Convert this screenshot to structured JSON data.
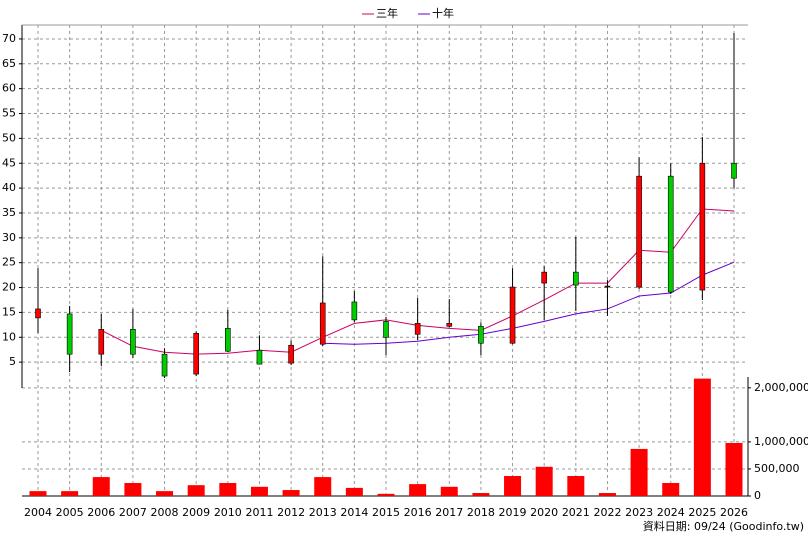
{
  "chart_data": {
    "type": "candlestick",
    "categories": [
      "2004",
      "2005",
      "2006",
      "2007",
      "2008",
      "2009",
      "2010",
      "2011",
      "2012",
      "2013",
      "2014",
      "2015",
      "2016",
      "2017",
      "2018",
      "2019",
      "2020",
      "2021",
      "2022",
      "2023",
      "2024",
      "2025",
      "2026"
    ],
    "open": [
      13.9,
      14.7,
      6.6,
      11.6,
      6.6,
      2.6,
      11.8,
      7.4,
      4.8,
      8.6,
      17.1,
      13.2,
      10.6,
      12.2,
      12.2,
      8.8,
      20.9,
      23.1,
      20.1,
      20.1,
      42.4,
      19.5,
      45
    ],
    "close": [
      15.7,
      6.6,
      11.6,
      6.6,
      2.2,
      10.8,
      7.2,
      4.6,
      8.4,
      16.9,
      13.5,
      10,
      12.8,
      12.8,
      8.8,
      20.1,
      23.1,
      20.5,
      20.3,
      42.4,
      19.1,
      45,
      42
    ],
    "high": [
      23.9,
      16.3,
      14.7,
      15.7,
      7.8,
      11.2,
      15.5,
      10.4,
      9.4,
      26.3,
      19.3,
      14.1,
      17.9,
      17.7,
      13,
      23.9,
      24.3,
      30.2,
      21.5,
      46.2,
      45,
      50.3,
      71.2
    ],
    "low": [
      10.8,
      3,
      4.2,
      5.8,
      1.8,
      2.2,
      7,
      4.6,
      4.4,
      8.2,
      13,
      6.4,
      9.4,
      12,
      6.4,
      8.6,
      13.5,
      15.3,
      14.3,
      19.7,
      18.7,
      17.5,
      40
    ],
    "up_color": "#ff0000",
    "down_color": "#00cc00",
    "series": [
      {
        "name": "三年",
        "color": "#cc0066",
        "values": [
          null,
          null,
          11.4,
          8.2,
          7,
          6.6,
          6.8,
          7.4,
          7,
          10,
          12.8,
          13.5,
          12.4,
          11.8,
          11.4,
          14.3,
          17.5,
          20.9,
          20.9,
          27.5,
          27.1,
          35.8,
          35.4
        ]
      },
      {
        "name": "十年",
        "color": "#6600cc",
        "values": [
          null,
          null,
          null,
          null,
          null,
          null,
          null,
          null,
          null,
          8.8,
          8.6,
          8.8,
          9.2,
          10,
          10.6,
          11.8,
          13.2,
          14.7,
          15.7,
          18.3,
          18.9,
          22.5,
          25.1
        ]
      }
    ],
    "ylim": [
      0,
      72
    ],
    "yticks": [
      5,
      10,
      15,
      20,
      25,
      30,
      35,
      40,
      45,
      50,
      55,
      60,
      65,
      70
    ],
    "volume": {
      "color": "#ff0000",
      "values": [
        90000,
        90000,
        350000,
        240000,
        90000,
        200000,
        240000,
        170000,
        110000,
        350000,
        150000,
        40000,
        220000,
        170000,
        55000,
        370000,
        540000,
        370000,
        55000,
        870000,
        240000,
        2170000,
        980000
      ],
      "ylim": [
        0,
        2200000
      ],
      "yticks": [
        0,
        {
          "value": 500000,
          "label": "500,000"
        },
        {
          "value": 1000000,
          "label": "1,000,000"
        },
        {
          "value": 2000000,
          "label": "2,000,000"
        }
      ]
    },
    "grid": true,
    "note": "資料日期: 09/24 (Goodinfo.tw)"
  }
}
